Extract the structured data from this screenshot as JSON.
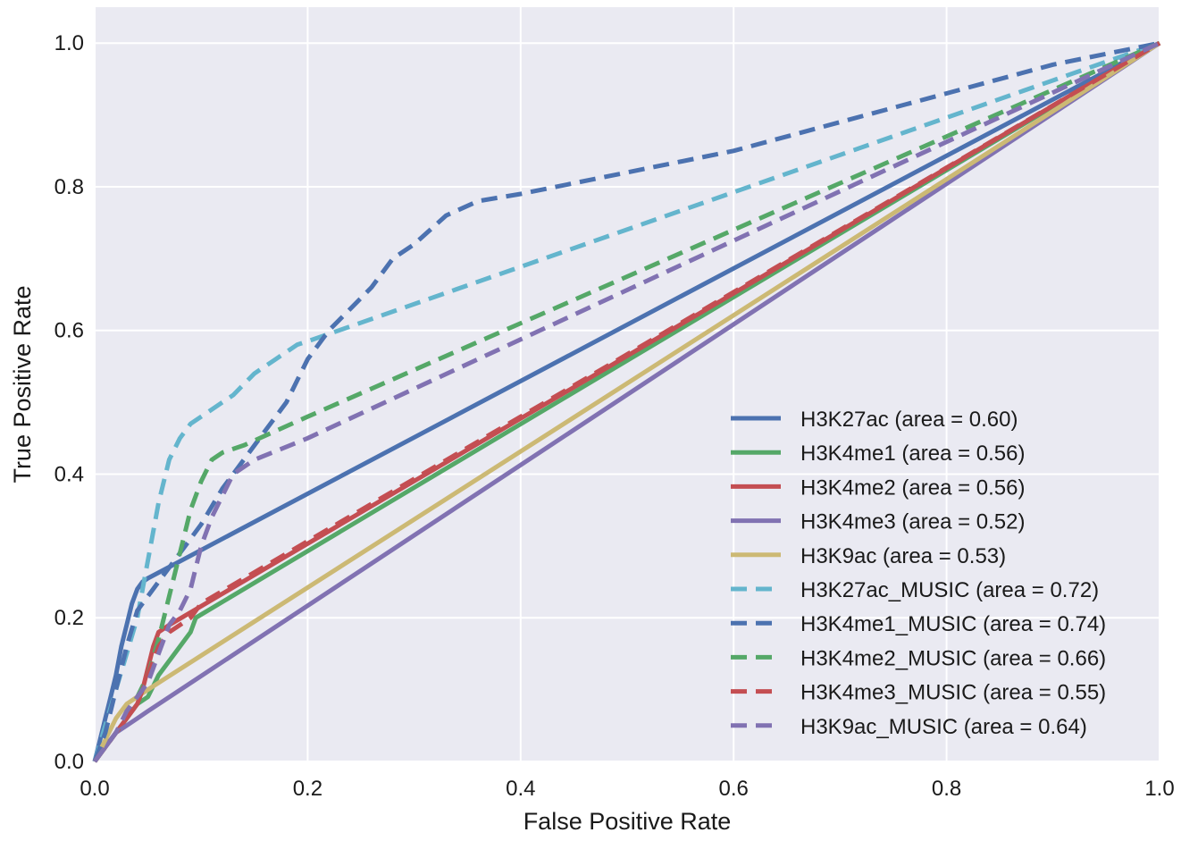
{
  "chart_data": {
    "type": "line",
    "title": "",
    "xlabel": "False Positive Rate",
    "ylabel": "True Positive Rate",
    "xlim": [
      0.0,
      1.0
    ],
    "ylim": [
      0.0,
      1.05
    ],
    "xticks": [
      "0.0",
      "0.2",
      "0.4",
      "0.6",
      "0.8",
      "1.0"
    ],
    "yticks": [
      "0.0",
      "0.2",
      "0.4",
      "0.6",
      "0.8",
      "1.0"
    ],
    "grid": true,
    "legend_position": "lower-right",
    "colors": {
      "background": "#EAEAF2",
      "grid": "#FFFFFF",
      "blue": "#4C72B0",
      "green": "#55A868",
      "red": "#C44E52",
      "purple": "#8172B2",
      "gold": "#CCB974",
      "cyan": "#64B5CD"
    },
    "series": [
      {
        "name": "H3K27ac (area = 0.60)",
        "color": "#4C72B0",
        "dash": "solid",
        "points": [
          [
            0,
            0
          ],
          [
            0.005,
            0.03
          ],
          [
            0.01,
            0.06
          ],
          [
            0.015,
            0.09
          ],
          [
            0.02,
            0.12
          ],
          [
            0.025,
            0.16
          ],
          [
            0.03,
            0.19
          ],
          [
            0.035,
            0.22
          ],
          [
            0.04,
            0.24
          ],
          [
            0.045,
            0.25
          ],
          [
            0.05,
            0.255
          ],
          [
            1,
            1
          ]
        ]
      },
      {
        "name": "H3K4me1 (area = 0.56)",
        "color": "#55A868",
        "dash": "solid",
        "points": [
          [
            0,
            0
          ],
          [
            0.01,
            0.02
          ],
          [
            0.02,
            0.04
          ],
          [
            0.03,
            0.06
          ],
          [
            0.04,
            0.08
          ],
          [
            0.05,
            0.09
          ],
          [
            0.06,
            0.12
          ],
          [
            0.07,
            0.14
          ],
          [
            0.08,
            0.16
          ],
          [
            0.09,
            0.18
          ],
          [
            0.095,
            0.2
          ],
          [
            1,
            1
          ]
        ]
      },
      {
        "name": "H3K4me2 (area = 0.56)",
        "color": "#C44E52",
        "dash": "solid",
        "points": [
          [
            0,
            0
          ],
          [
            0.01,
            0.02
          ],
          [
            0.02,
            0.04
          ],
          [
            0.03,
            0.06
          ],
          [
            0.04,
            0.08
          ],
          [
            0.045,
            0.1
          ],
          [
            0.05,
            0.13
          ],
          [
            0.055,
            0.16
          ],
          [
            0.06,
            0.18
          ],
          [
            0.07,
            0.19
          ],
          [
            1,
            1
          ]
        ]
      },
      {
        "name": "H3K4me3 (area = 0.52)",
        "color": "#8172B2",
        "dash": "solid",
        "points": [
          [
            0,
            0
          ],
          [
            0.01,
            0.02
          ],
          [
            0.02,
            0.04
          ],
          [
            0.03,
            0.05
          ],
          [
            0.04,
            0.06
          ],
          [
            0.05,
            0.07
          ],
          [
            1,
            1
          ]
        ]
      },
      {
        "name": "H3K9ac (area = 0.53)",
        "color": "#CCB974",
        "dash": "solid",
        "points": [
          [
            0,
            0
          ],
          [
            0.01,
            0.03
          ],
          [
            0.02,
            0.06
          ],
          [
            0.03,
            0.08
          ],
          [
            0.04,
            0.09
          ],
          [
            0.05,
            0.1
          ],
          [
            1,
            1
          ]
        ]
      },
      {
        "name": "H3K27ac_MUSIC (area = 0.72)",
        "color": "#64B5CD",
        "dash": "dashed",
        "points": [
          [
            0,
            0
          ],
          [
            0.01,
            0.05
          ],
          [
            0.02,
            0.1
          ],
          [
            0.03,
            0.15
          ],
          [
            0.04,
            0.2
          ],
          [
            0.05,
            0.28
          ],
          [
            0.06,
            0.36
          ],
          [
            0.07,
            0.42
          ],
          [
            0.08,
            0.45
          ],
          [
            0.09,
            0.47
          ],
          [
            0.1,
            0.48
          ],
          [
            0.12,
            0.5
          ],
          [
            0.13,
            0.51
          ],
          [
            0.15,
            0.54
          ],
          [
            0.17,
            0.56
          ],
          [
            0.19,
            0.58
          ],
          [
            0.21,
            0.59
          ],
          [
            1,
            1
          ]
        ]
      },
      {
        "name": "H3K4me1_MUSIC (area = 0.74)",
        "color": "#4C72B0",
        "dash": "dashed",
        "points": [
          [
            0,
            0
          ],
          [
            0.01,
            0.04
          ],
          [
            0.02,
            0.1
          ],
          [
            0.03,
            0.16
          ],
          [
            0.04,
            0.21
          ],
          [
            0.06,
            0.25
          ],
          [
            0.08,
            0.29
          ],
          [
            0.1,
            0.33
          ],
          [
            0.12,
            0.38
          ],
          [
            0.14,
            0.42
          ],
          [
            0.16,
            0.46
          ],
          [
            0.18,
            0.5
          ],
          [
            0.2,
            0.56
          ],
          [
            0.22,
            0.6
          ],
          [
            0.24,
            0.63
          ],
          [
            0.26,
            0.66
          ],
          [
            0.28,
            0.7
          ],
          [
            0.3,
            0.72
          ],
          [
            0.33,
            0.76
          ],
          [
            0.36,
            0.78
          ],
          [
            0.4,
            0.79
          ],
          [
            0.5,
            0.82
          ],
          [
            0.6,
            0.85
          ],
          [
            0.7,
            0.89
          ],
          [
            0.8,
            0.93
          ],
          [
            0.9,
            0.97
          ],
          [
            1,
            1
          ]
        ]
      },
      {
        "name": "H3K4me2_MUSIC (area = 0.66)",
        "color": "#55A868",
        "dash": "dashed",
        "points": [
          [
            0,
            0
          ],
          [
            0.01,
            0.02
          ],
          [
            0.02,
            0.04
          ],
          [
            0.03,
            0.06
          ],
          [
            0.04,
            0.09
          ],
          [
            0.05,
            0.12
          ],
          [
            0.06,
            0.17
          ],
          [
            0.07,
            0.23
          ],
          [
            0.08,
            0.29
          ],
          [
            0.09,
            0.35
          ],
          [
            0.1,
            0.39
          ],
          [
            0.11,
            0.42
          ],
          [
            0.12,
            0.43
          ],
          [
            0.14,
            0.44
          ],
          [
            0.17,
            0.46
          ],
          [
            0.2,
            0.48
          ],
          [
            1,
            1
          ]
        ]
      },
      {
        "name": "H3K4me3_MUSIC (area = 0.55)",
        "color": "#C44E52",
        "dash": "dashed",
        "points": [
          [
            0,
            0
          ],
          [
            0.01,
            0.02
          ],
          [
            0.02,
            0.04
          ],
          [
            0.03,
            0.06
          ],
          [
            0.04,
            0.08
          ],
          [
            0.05,
            0.12
          ],
          [
            0.06,
            0.16
          ],
          [
            0.07,
            0.18
          ],
          [
            0.08,
            0.19
          ],
          [
            0.09,
            0.2
          ],
          [
            0.1,
            0.22
          ],
          [
            1,
            1
          ]
        ]
      },
      {
        "name": "H3K9ac_MUSIC (area = 0.64)",
        "color": "#8172B2",
        "dash": "dashed",
        "points": [
          [
            0,
            0
          ],
          [
            0.01,
            0.02
          ],
          [
            0.02,
            0.04
          ],
          [
            0.03,
            0.07
          ],
          [
            0.04,
            0.09
          ],
          [
            0.05,
            0.11
          ],
          [
            0.06,
            0.15
          ],
          [
            0.07,
            0.19
          ],
          [
            0.08,
            0.21
          ],
          [
            0.09,
            0.24
          ],
          [
            0.1,
            0.3
          ],
          [
            0.11,
            0.34
          ],
          [
            0.12,
            0.37
          ],
          [
            0.13,
            0.4
          ],
          [
            0.15,
            0.42
          ],
          [
            0.2,
            0.45
          ],
          [
            1,
            1
          ]
        ]
      }
    ]
  }
}
